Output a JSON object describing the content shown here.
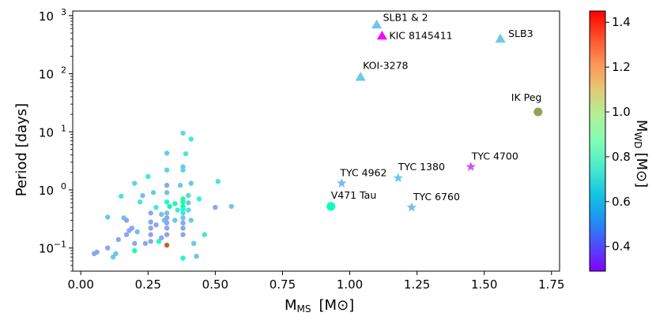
{
  "chart_data": {
    "type": "scatter",
    "title": "",
    "x_axis": {
      "label_main": "M",
      "label_sub": "MS",
      "label_unit": "[M⊙]",
      "range": [
        -0.03,
        1.78
      ],
      "ticks": [
        0.0,
        0.25,
        0.5,
        0.75,
        1.0,
        1.25,
        1.5,
        1.75
      ],
      "tick_labels": [
        "0.00",
        "0.25",
        "0.50",
        "0.75",
        "1.00",
        "1.25",
        "1.50",
        "1.75"
      ],
      "scale": "linear"
    },
    "y_axis": {
      "label": "Period [days]",
      "scale": "log",
      "range": [
        0.04,
        1200
      ],
      "ticks": [
        0.1,
        1,
        10,
        100,
        1000
      ],
      "tick_labels": [
        {
          "base": "10",
          "exp": "−1"
        },
        {
          "base": "10",
          "exp": "0"
        },
        {
          "base": "10",
          "exp": "1"
        },
        {
          "base": "10",
          "exp": "2"
        },
        {
          "base": "10",
          "exp": "3"
        }
      ]
    },
    "colorbar": {
      "label_main": "M",
      "label_sub": "WD",
      "label_unit": "[M⊙]",
      "range": [
        0.29,
        1.45
      ],
      "ticks": [
        0.4,
        0.6,
        0.8,
        1.0,
        1.2,
        1.4
      ],
      "tick_labels": [
        "0.4",
        "0.6",
        "0.8",
        "1.0",
        "1.2",
        "1.4"
      ],
      "colormap": "rainbow"
    },
    "annotated": [
      {
        "label": "SLB1 & 2",
        "x": 1.1,
        "y": 700,
        "mwd": 0.62,
        "marker": "triangle"
      },
      {
        "label": "KIC 8145411",
        "x": 1.12,
        "y": 450,
        "mwd": 0.3,
        "marker": "triangle"
      },
      {
        "label": "SLB3",
        "x": 1.56,
        "y": 400,
        "mwd": 0.62,
        "marker": "triangle"
      },
      {
        "label": "KOI-3278",
        "x": 1.04,
        "y": 88,
        "mwd": 0.63,
        "marker": "triangle"
      },
      {
        "label": "IK Peg",
        "x": 1.7,
        "y": 22,
        "mwd": 1.19,
        "marker": "circle"
      },
      {
        "label": "TYC 4700",
        "x": 1.45,
        "y": 2.5,
        "mwd": 0.42,
        "marker": "star"
      },
      {
        "label": "TYC 1380",
        "x": 1.18,
        "y": 1.6,
        "mwd": 0.64,
        "marker": "star"
      },
      {
        "label": "TYC 4962",
        "x": 0.97,
        "y": 1.3,
        "mwd": 0.6,
        "marker": "star"
      },
      {
        "label": "TYC 6760",
        "x": 1.23,
        "y": 0.5,
        "mwd": 0.6,
        "marker": "star"
      },
      {
        "label": "V471 Tau",
        "x": 0.93,
        "y": 0.52,
        "mwd": 0.84,
        "marker": "circle"
      }
    ],
    "population": [
      {
        "x": 0.05,
        "y": 0.08,
        "mwd": 0.55
      },
      {
        "x": 0.06,
        "y": 0.085,
        "mwd": 0.55
      },
      {
        "x": 0.1,
        "y": 0.1,
        "mwd": 0.55
      },
      {
        "x": 0.1,
        "y": 0.34,
        "mwd": 0.62
      },
      {
        "x": 0.12,
        "y": 0.07,
        "mwd": 0.62
      },
      {
        "x": 0.13,
        "y": 0.08,
        "mwd": 0.62
      },
      {
        "x": 0.14,
        "y": 0.14,
        "mwd": 0.55
      },
      {
        "x": 0.15,
        "y": 0.78,
        "mwd": 0.7
      },
      {
        "x": 0.16,
        "y": 0.33,
        "mwd": 0.6
      },
      {
        "x": 0.17,
        "y": 0.3,
        "mwd": 0.55
      },
      {
        "x": 0.17,
        "y": 0.17,
        "mwd": 0.55
      },
      {
        "x": 0.18,
        "y": 0.2,
        "mwd": 0.55
      },
      {
        "x": 0.19,
        "y": 0.22,
        "mwd": 0.55
      },
      {
        "x": 0.2,
        "y": 0.09,
        "mwd": 0.92
      },
      {
        "x": 0.2,
        "y": 0.12,
        "mwd": 0.55
      },
      {
        "x": 0.21,
        "y": 0.19,
        "mwd": 0.6
      },
      {
        "x": 0.2,
        "y": 1.3,
        "mwd": 0.66
      },
      {
        "x": 0.22,
        "y": 0.62,
        "mwd": 0.7
      },
      {
        "x": 0.23,
        "y": 0.8,
        "mwd": 0.6
      },
      {
        "x": 0.24,
        "y": 0.12,
        "mwd": 0.55
      },
      {
        "x": 0.25,
        "y": 1.7,
        "mwd": 0.72
      },
      {
        "x": 0.26,
        "y": 0.4,
        "mwd": 0.55
      },
      {
        "x": 0.26,
        "y": 0.28,
        "mwd": 0.55
      },
      {
        "x": 0.26,
        "y": 0.22,
        "mwd": 0.55
      },
      {
        "x": 0.26,
        "y": 0.17,
        "mwd": 0.55
      },
      {
        "x": 0.26,
        "y": 0.13,
        "mwd": 0.55
      },
      {
        "x": 0.27,
        "y": 0.9,
        "mwd": 0.62
      },
      {
        "x": 0.28,
        "y": 0.5,
        "mwd": 0.72
      },
      {
        "x": 0.28,
        "y": 0.25,
        "mwd": 0.55
      },
      {
        "x": 0.29,
        "y": 0.13,
        "mwd": 0.82
      },
      {
        "x": 0.3,
        "y": 0.15,
        "mwd": 0.55
      },
      {
        "x": 0.3,
        "y": 0.38,
        "mwd": 0.6
      },
      {
        "x": 0.31,
        "y": 0.3,
        "mwd": 0.62
      },
      {
        "x": 0.32,
        "y": 0.112,
        "mwd": 1.3
      },
      {
        "x": 0.32,
        "y": 4.3,
        "mwd": 0.62
      },
      {
        "x": 0.32,
        "y": 2.2,
        "mwd": 0.66
      },
      {
        "x": 0.32,
        "y": 1.2,
        "mwd": 0.55
      },
      {
        "x": 0.32,
        "y": 0.9,
        "mwd": 0.6
      },
      {
        "x": 0.32,
        "y": 0.62,
        "mwd": 0.8
      },
      {
        "x": 0.32,
        "y": 0.4,
        "mwd": 0.6
      },
      {
        "x": 0.32,
        "y": 0.33,
        "mwd": 0.55
      },
      {
        "x": 0.32,
        "y": 0.27,
        "mwd": 0.55
      },
      {
        "x": 0.32,
        "y": 0.22,
        "mwd": 0.55
      },
      {
        "x": 0.32,
        "y": 0.17,
        "mwd": 0.55
      },
      {
        "x": 0.33,
        "y": 0.52,
        "mwd": 0.9
      },
      {
        "x": 0.35,
        "y": 0.58,
        "mwd": 0.95
      },
      {
        "x": 0.35,
        "y": 0.3,
        "mwd": 0.62
      },
      {
        "x": 0.36,
        "y": 0.45,
        "mwd": 0.72
      },
      {
        "x": 0.37,
        "y": 1.2,
        "mwd": 0.62
      },
      {
        "x": 0.38,
        "y": 9.5,
        "mwd": 0.66
      },
      {
        "x": 0.38,
        "y": 2.5,
        "mwd": 0.62
      },
      {
        "x": 0.38,
        "y": 2.2,
        "mwd": 0.66
      },
      {
        "x": 0.38,
        "y": 0.7,
        "mwd": 0.98
      },
      {
        "x": 0.38,
        "y": 0.62,
        "mwd": 0.92
      },
      {
        "x": 0.38,
        "y": 0.52,
        "mwd": 0.9
      },
      {
        "x": 0.38,
        "y": 0.46,
        "mwd": 0.8
      },
      {
        "x": 0.38,
        "y": 0.4,
        "mwd": 0.7
      },
      {
        "x": 0.38,
        "y": 0.33,
        "mwd": 0.62
      },
      {
        "x": 0.38,
        "y": 0.27,
        "mwd": 0.55
      },
      {
        "x": 0.38,
        "y": 0.22,
        "mwd": 0.55
      },
      {
        "x": 0.38,
        "y": 0.17,
        "mwd": 0.55
      },
      {
        "x": 0.38,
        "y": 0.067,
        "mwd": 0.82
      },
      {
        "x": 0.39,
        "y": 4.2,
        "mwd": 0.7
      },
      {
        "x": 0.4,
        "y": 0.8,
        "mwd": 0.66
      },
      {
        "x": 0.4,
        "y": 0.6,
        "mwd": 0.62
      },
      {
        "x": 0.4,
        "y": 0.45,
        "mwd": 0.7
      },
      {
        "x": 0.41,
        "y": 7.5,
        "mwd": 0.72
      },
      {
        "x": 0.41,
        "y": 1.3,
        "mwd": 0.62
      },
      {
        "x": 0.41,
        "y": 0.3,
        "mwd": 0.62
      },
      {
        "x": 0.42,
        "y": 0.12,
        "mwd": 0.62
      },
      {
        "x": 0.43,
        "y": 0.072,
        "mwd": 0.6
      },
      {
        "x": 0.44,
        "y": 0.7,
        "mwd": 0.75
      },
      {
        "x": 0.46,
        "y": 0.17,
        "mwd": 0.7
      },
      {
        "x": 0.5,
        "y": 0.5,
        "mwd": 0.55
      },
      {
        "x": 0.51,
        "y": 1.4,
        "mwd": 0.7
      },
      {
        "x": 0.56,
        "y": 0.52,
        "mwd": 0.62
      }
    ]
  }
}
